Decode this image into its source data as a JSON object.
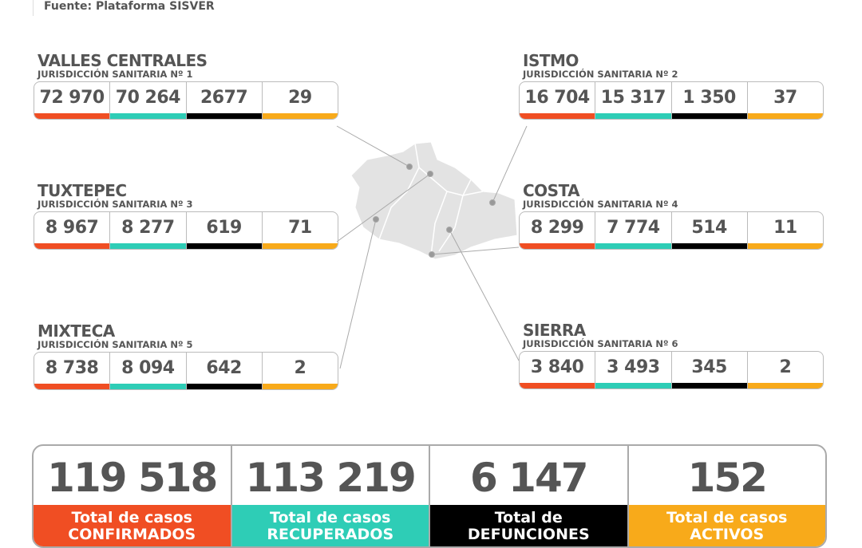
{
  "source": "Fuente: Plataforma SISVER",
  "colors": {
    "confirmed": "#f04e23",
    "recovered": "#2ecdb6",
    "deaths": "#000000",
    "active": "#f8aa1a"
  },
  "regions": [
    {
      "name": "VALLES CENTRALES",
      "sub": "JURISDICCIÓN SANITARIA Nº 1",
      "values": [
        "72 970",
        "70 264",
        "2677",
        "29"
      ]
    },
    {
      "name": "ISTMO",
      "sub": "JURISDICCIÓN SANITARIA Nº 2",
      "values": [
        "16 704",
        "15 317",
        "1 350",
        "37"
      ]
    },
    {
      "name": "TUXTEPEC",
      "sub": "JURISDICCIÓN SANITARIA Nº 3",
      "values": [
        "8 967",
        "8 277",
        "619",
        "71"
      ]
    },
    {
      "name": "COSTA",
      "sub": "JURISDICCIÓN SANITARIA Nº 4",
      "values": [
        "8 299",
        "7 774",
        "514",
        "11"
      ]
    },
    {
      "name": "MIXTECA",
      "sub": "JURISDICCIÓN SANITARIA Nº 5",
      "values": [
        "8 738",
        "8 094",
        "642",
        "2"
      ]
    },
    {
      "name": "SIERRA",
      "sub": "JURISDICCIÓN SANITARIA Nº 6",
      "values": [
        "3 840",
        "3 493",
        "345",
        "2"
      ]
    }
  ],
  "totals": [
    {
      "value": "119 518",
      "label1": "Total de casos",
      "label2": "CONFIRMADOS"
    },
    {
      "value": "113 219",
      "label1": "Total de casos",
      "label2": "RECUPERADOS"
    },
    {
      "value": "6 147",
      "label1": "Total de",
      "label2": "DEFUNCIONES"
    },
    {
      "value": "152",
      "label1": "Total de casos",
      "label2": "ACTIVOS"
    }
  ]
}
